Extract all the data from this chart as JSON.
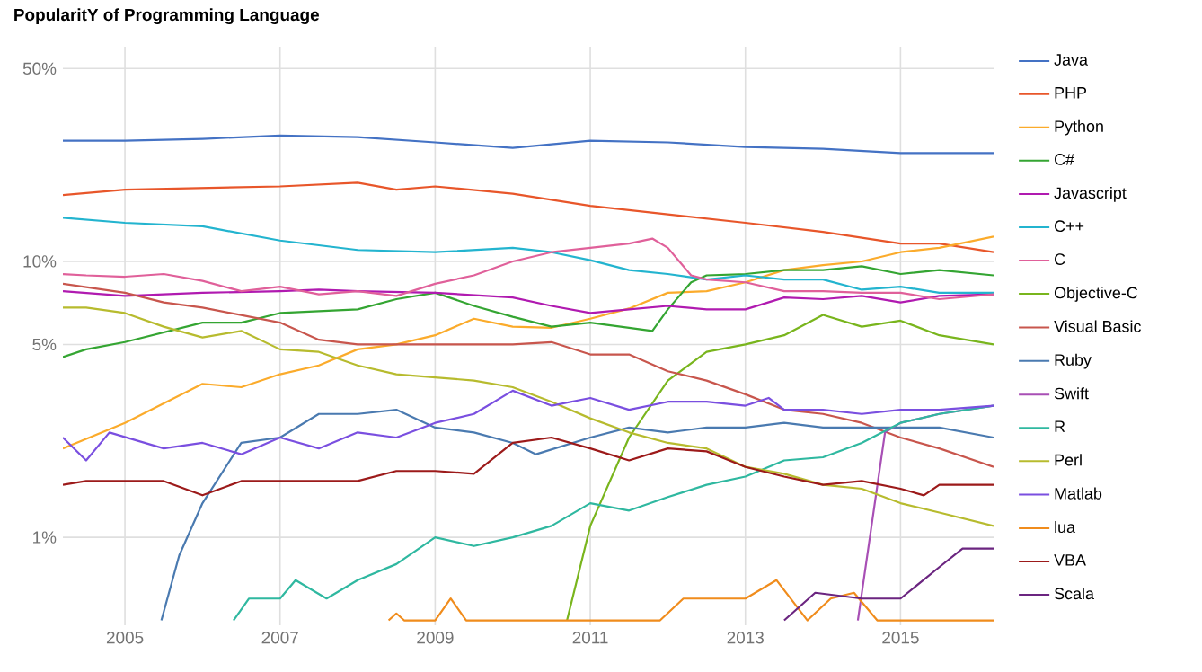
{
  "chart_data": {
    "type": "line",
    "title": "PopularitY of Programming Language",
    "log": "y",
    "grid": true,
    "legend": "right",
    "xlim": [
      2004.2,
      2016.2
    ],
    "ylim": [
      0.48,
      60
    ],
    "xticks": [
      2005,
      2007,
      2009,
      2011,
      2013,
      2015
    ],
    "yticks": [
      {
        "value": 1,
        "label": "1%"
      },
      {
        "value": 5,
        "label": "5%"
      },
      {
        "value": 10,
        "label": "10%"
      },
      {
        "value": 50,
        "label": "50%"
      }
    ],
    "series": [
      {
        "name": "Java",
        "color": "#4472c4",
        "x": [
          2004.2,
          2005,
          2006,
          2007,
          2008,
          2009,
          2010,
          2011,
          2012,
          2013,
          2014,
          2015,
          2016.2
        ],
        "values": [
          27.4,
          27.4,
          27.8,
          28.6,
          28.2,
          27.0,
          25.8,
          27.4,
          27.0,
          26.0,
          25.6,
          24.7,
          24.7
        ]
      },
      {
        "name": "PHP",
        "color": "#e8562a",
        "x": [
          2004.2,
          2005,
          2007,
          2008,
          2008.5,
          2009,
          2010,
          2011,
          2012,
          2013,
          2014,
          2015,
          2015.5,
          2016.2
        ],
        "values": [
          17.4,
          18.2,
          18.7,
          19.3,
          18.2,
          18.7,
          17.6,
          15.9,
          14.8,
          13.8,
          12.8,
          11.6,
          11.6,
          10.8
        ]
      },
      {
        "name": "Python",
        "color": "#fbab2b",
        "x": [
          2004.2,
          2005,
          2006,
          2006.5,
          2007,
          2007.5,
          2008,
          2008.5,
          2009,
          2009.5,
          2010,
          2010.5,
          2011,
          2011.5,
          2012,
          2012.5,
          2013,
          2013.5,
          2014,
          2014.5,
          2015,
          2015.5,
          2016.2
        ],
        "values": [
          2.1,
          2.6,
          3.6,
          3.5,
          3.9,
          4.2,
          4.8,
          5.0,
          5.4,
          6.2,
          5.8,
          5.75,
          6.2,
          6.75,
          7.7,
          7.8,
          8.4,
          9.3,
          9.7,
          10.0,
          10.8,
          11.2,
          12.3
        ]
      },
      {
        "name": "C#",
        "color": "#34a532",
        "x": [
          2004.2,
          2004.5,
          2005,
          2006,
          2006.5,
          2007,
          2007.5,
          2008,
          2008.5,
          2009,
          2009.5,
          2010,
          2010.5,
          2011,
          2011.5,
          2011.8,
          2012,
          2012.3,
          2012.5,
          2013,
          2013.5,
          2014,
          2014.5,
          2015,
          2015.5,
          2016.2
        ],
        "values": [
          4.5,
          4.8,
          5.1,
          6.0,
          6.0,
          6.5,
          6.6,
          6.7,
          7.3,
          7.7,
          6.9,
          6.3,
          5.8,
          6.0,
          5.75,
          5.6,
          6.7,
          8.4,
          8.9,
          9.0,
          9.3,
          9.3,
          9.6,
          9.0,
          9.3,
          8.9
        ]
      },
      {
        "name": "Javascript",
        "color": "#b01ab0",
        "x": [
          2004.2,
          2005,
          2006,
          2007,
          2007.5,
          2008,
          2009,
          2010,
          2010.5,
          2011,
          2011.5,
          2012,
          2012.5,
          2013,
          2013.5,
          2014,
          2014.5,
          2015,
          2015.5,
          2016.2
        ],
        "values": [
          7.8,
          7.5,
          7.7,
          7.8,
          7.9,
          7.8,
          7.7,
          7.4,
          6.9,
          6.5,
          6.7,
          6.9,
          6.7,
          6.7,
          7.4,
          7.3,
          7.5,
          7.1,
          7.5,
          7.6
        ]
      },
      {
        "name": "C++",
        "color": "#23b4cf",
        "x": [
          2004.2,
          2005,
          2006,
          2007,
          2008,
          2009,
          2010,
          2010.5,
          2011,
          2011.5,
          2012,
          2012.5,
          2013,
          2013.5,
          2014,
          2014.5,
          2015,
          2015.5,
          2016.2
        ],
        "values": [
          14.4,
          13.8,
          13.4,
          11.9,
          11.0,
          10.8,
          11.2,
          10.8,
          10.1,
          9.3,
          9.0,
          8.6,
          8.9,
          8.6,
          8.6,
          7.9,
          8.1,
          7.7,
          7.7
        ]
      },
      {
        "name": "C",
        "color": "#e0609a",
        "x": [
          2004.2,
          2004.5,
          2005,
          2005.5,
          2006,
          2006.5,
          2007,
          2007.5,
          2008,
          2008.5,
          2009,
          2009.5,
          2010,
          2010.5,
          2011,
          2011.5,
          2011.8,
          2012,
          2012.3,
          2012.5,
          2013,
          2013.5,
          2014,
          2014.5,
          2015,
          2015.5,
          2016.2
        ],
        "values": [
          9.0,
          8.9,
          8.8,
          9.0,
          8.5,
          7.8,
          8.1,
          7.6,
          7.8,
          7.5,
          8.3,
          8.9,
          10.0,
          10.8,
          11.2,
          11.6,
          12.1,
          11.2,
          8.9,
          8.6,
          8.4,
          7.8,
          7.8,
          7.7,
          7.7,
          7.3,
          7.6
        ]
      },
      {
        "name": "Objective-C",
        "color": "#79b51d",
        "x": [
          2010.7,
          2011,
          2011.5,
          2012,
          2012.5,
          2013,
          2013.5,
          2014,
          2014.5,
          2015,
          2015.5,
          2016.2
        ],
        "values": [
          0.5,
          1.1,
          2.3,
          3.7,
          4.7,
          5.0,
          5.4,
          6.4,
          5.8,
          6.1,
          5.4,
          5.0
        ]
      },
      {
        "name": "Visual Basic",
        "color": "#c8564d",
        "x": [
          2004.2,
          2005,
          2005.5,
          2006,
          2007,
          2007.5,
          2008,
          2009,
          2010,
          2010.5,
          2011,
          2011.5,
          2012,
          2012.5,
          2013,
          2013.5,
          2014,
          2014.5,
          2015,
          2015.5,
          2016.2
        ],
        "values": [
          8.3,
          7.7,
          7.1,
          6.8,
          6.0,
          5.2,
          5.0,
          5.0,
          5.0,
          5.1,
          4.6,
          4.6,
          4.0,
          3.7,
          3.3,
          2.9,
          2.8,
          2.6,
          2.3,
          2.1,
          1.8
        ]
      },
      {
        "name": "Ruby",
        "color": "#4a7ab0",
        "x": [
          2005.47,
          2005.7,
          2006,
          2006.5,
          2007,
          2007.5,
          2008,
          2008.5,
          2009,
          2009.5,
          2010,
          2010.3,
          2011,
          2011.5,
          2012,
          2012.5,
          2013,
          2013.5,
          2014,
          2014.5,
          2015,
          2015.5,
          2016.2
        ],
        "values": [
          0.5,
          0.86,
          1.33,
          2.2,
          2.3,
          2.8,
          2.8,
          2.9,
          2.5,
          2.4,
          2.2,
          2.0,
          2.3,
          2.5,
          2.4,
          2.5,
          2.5,
          2.6,
          2.5,
          2.5,
          2.5,
          2.5,
          2.3
        ]
      },
      {
        "name": "Swift",
        "color": "#a84fb5",
        "x": [
          2014.45,
          2014.8,
          2015,
          2015.5,
          2016.2
        ],
        "values": [
          0.5,
          2.4,
          2.6,
          2.8,
          3.0
        ]
      },
      {
        "name": "R",
        "color": "#2fb8a0",
        "x": [
          2006.4,
          2006.6,
          2007,
          2007.2,
          2007.6,
          2008,
          2008.5,
          2009,
          2009.5,
          2010,
          2010.5,
          2011,
          2011.5,
          2012,
          2012.5,
          2013,
          2013.5,
          2014,
          2014.5,
          2015,
          2015.5,
          2016.2
        ],
        "values": [
          0.5,
          0.6,
          0.6,
          0.7,
          0.6,
          0.7,
          0.8,
          1.0,
          0.93,
          1.0,
          1.1,
          1.33,
          1.25,
          1.4,
          1.55,
          1.66,
          1.9,
          1.95,
          2.2,
          2.6,
          2.8,
          3.0
        ]
      },
      {
        "name": "Perl",
        "color": "#b7bb2e",
        "x": [
          2004.2,
          2004.5,
          2005,
          2005.5,
          2006,
          2006.5,
          2007,
          2007.5,
          2008,
          2008.5,
          2009,
          2009.5,
          2010,
          2010.5,
          2011,
          2011.5,
          2012,
          2012.5,
          2013,
          2013.5,
          2014,
          2014.5,
          2015,
          2015.5,
          2016.2
        ],
        "values": [
          6.8,
          6.8,
          6.5,
          5.8,
          5.3,
          5.6,
          4.8,
          4.7,
          4.2,
          3.9,
          3.8,
          3.7,
          3.5,
          3.1,
          2.7,
          2.4,
          2.2,
          2.1,
          1.8,
          1.7,
          1.55,
          1.5,
          1.33,
          1.23,
          1.1
        ]
      },
      {
        "name": "Matlab",
        "color": "#7a4fe0",
        "x": [
          2004.2,
          2004.5,
          2004.8,
          2005.5,
          2006,
          2006.5,
          2007,
          2007.5,
          2008,
          2008.5,
          2009,
          2009.5,
          2010,
          2010.5,
          2011,
          2011.5,
          2012,
          2012.5,
          2013,
          2013.3,
          2013.5,
          2014,
          2014.5,
          2015,
          2015.5,
          2016.2
        ],
        "values": [
          2.3,
          1.9,
          2.4,
          2.1,
          2.2,
          2.0,
          2.3,
          2.1,
          2.4,
          2.3,
          2.6,
          2.8,
          3.4,
          3.0,
          3.2,
          2.9,
          3.1,
          3.1,
          3.0,
          3.2,
          2.9,
          2.9,
          2.8,
          2.9,
          2.9,
          3.0
        ]
      },
      {
        "name": "lua",
        "color": "#f08c1c",
        "x": [
          2008.4,
          2008.5,
          2008.6,
          2009.0,
          2009.2,
          2009.4,
          2011.9,
          2012.2,
          2013,
          2013.4,
          2013.8,
          2014.1,
          2014.4,
          2014.7,
          2016.2
        ],
        "values": [
          0.5,
          0.53,
          0.5,
          0.5,
          0.6,
          0.5,
          0.5,
          0.6,
          0.6,
          0.7,
          0.5,
          0.6,
          0.63,
          0.5,
          0.5
        ]
      },
      {
        "name": "VBA",
        "color": "#9c1a1a",
        "x": [
          2004.2,
          2004.5,
          2005,
          2005.5,
          2006,
          2006.5,
          2007,
          2008,
          2008.5,
          2009,
          2009.5,
          2010,
          2010.5,
          2011,
          2011.5,
          2012,
          2012.5,
          2013,
          2013.5,
          2014,
          2014.5,
          2015,
          2015.3,
          2015.5,
          2016.2
        ],
        "values": [
          1.55,
          1.6,
          1.6,
          1.6,
          1.42,
          1.6,
          1.6,
          1.6,
          1.74,
          1.74,
          1.7,
          2.2,
          2.3,
          2.1,
          1.9,
          2.1,
          2.05,
          1.8,
          1.66,
          1.55,
          1.6,
          1.5,
          1.42,
          1.55,
          1.55
        ]
      },
      {
        "name": "Scala",
        "color": "#6b2580",
        "x": [
          2013.5,
          2013.9,
          2014.5,
          2015,
          2015.5,
          2015.8,
          2016.2
        ],
        "values": [
          0.5,
          0.63,
          0.6,
          0.6,
          0.78,
          0.91,
          0.91
        ]
      }
    ]
  }
}
